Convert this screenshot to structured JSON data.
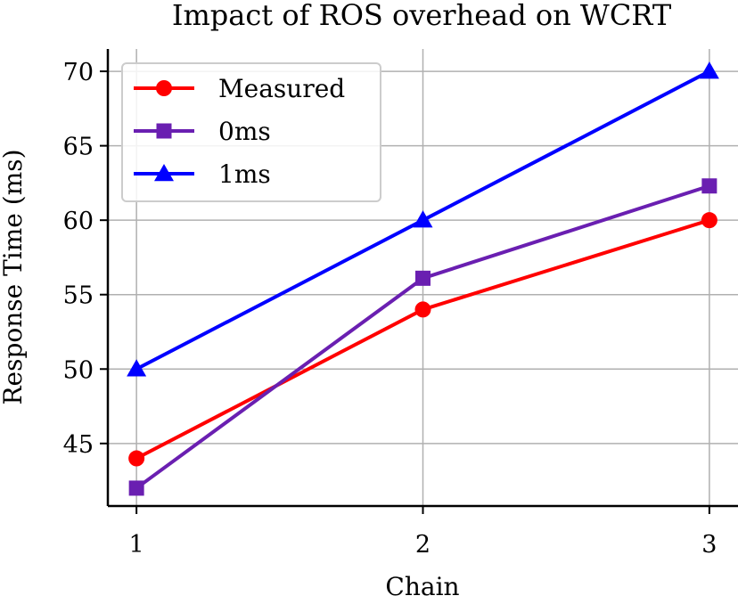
{
  "chart_data": {
    "type": "line",
    "title": "Impact of ROS overhead on WCRT",
    "xlabel": "Chain",
    "ylabel": "Response Time (ms)",
    "x": [
      1,
      2,
      3
    ],
    "x_ticks": [
      "1",
      "2",
      "3"
    ],
    "y_ticks": [
      45,
      50,
      55,
      60,
      65,
      70
    ],
    "xlim": [
      0.9,
      3.1
    ],
    "ylim": [
      40.8,
      71.5
    ],
    "grid": true,
    "legend_position": "top-left",
    "series": [
      {
        "name": "Measured",
        "values": [
          44,
          54,
          60
        ],
        "color": "#ff0000",
        "marker": "circle"
      },
      {
        "name": "0ms",
        "values": [
          42,
          56.1,
          62.3
        ],
        "color": "#6a1fb1",
        "marker": "square"
      },
      {
        "name": "1ms",
        "values": [
          50,
          60,
          70
        ],
        "color": "#0000ff",
        "marker": "triangle"
      }
    ]
  }
}
